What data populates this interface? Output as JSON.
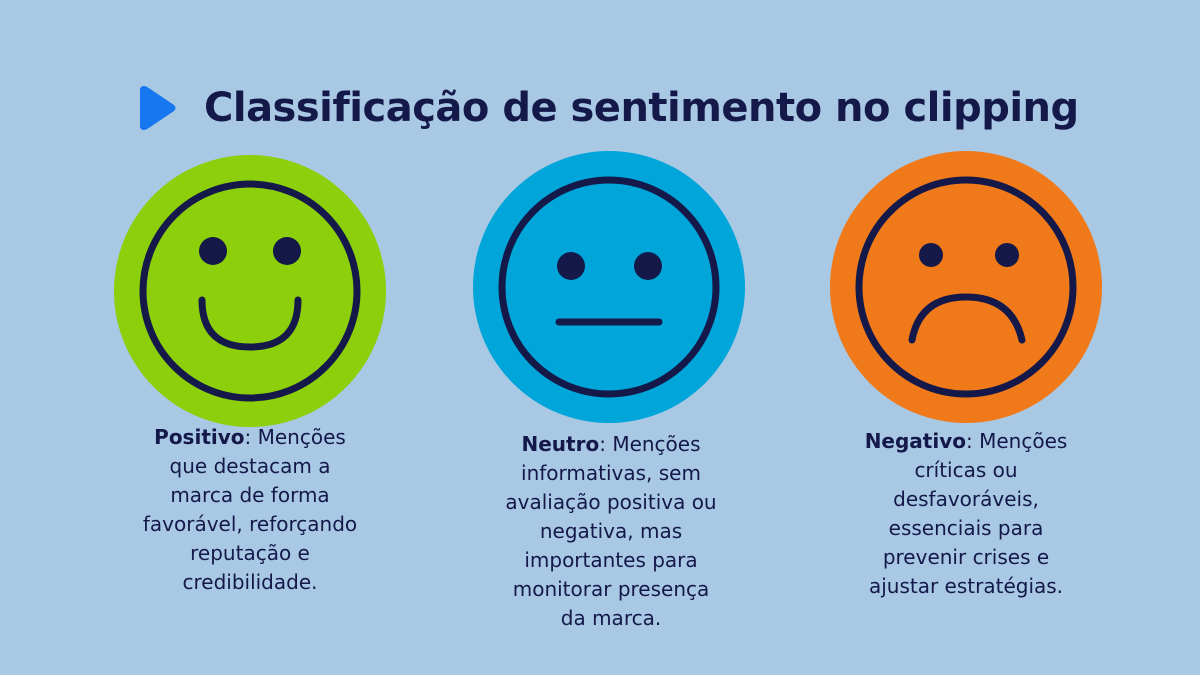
{
  "title": "Classificação de sentimento no clipping",
  "colors": {
    "background": "#a8c8e4",
    "text": "#14194a",
    "accent_play": "#1677f0",
    "positive": "#8ccf0a",
    "neutral": "#00a6da",
    "negative": "#f07a1a",
    "face_line": "#14194a"
  },
  "items": [
    {
      "key": "positive",
      "icon": "smiling-face-icon",
      "label": "Positivo",
      "separator": ":",
      "lines": [
        "Menções",
        "que destacam a",
        "marca de forma",
        "favorável, reforçando",
        "reputação e",
        "credibilidade."
      ]
    },
    {
      "key": "neutral",
      "icon": "neutral-face-icon",
      "label": "Neutro",
      "separator": ":",
      "lines": [
        "Menções",
        "informativas, sem",
        "avaliação positiva ou",
        "negativa, mas",
        "importantes para",
        "monitorar presença",
        "da marca."
      ]
    },
    {
      "key": "negative",
      "icon": "sad-face-icon",
      "label": "Negativo",
      "separator": ":",
      "lines": [
        "Menções",
        "críticas ou",
        "desfavoráveis,",
        "essenciais para",
        "prevenir crises e",
        "ajustar estratégias."
      ]
    }
  ]
}
